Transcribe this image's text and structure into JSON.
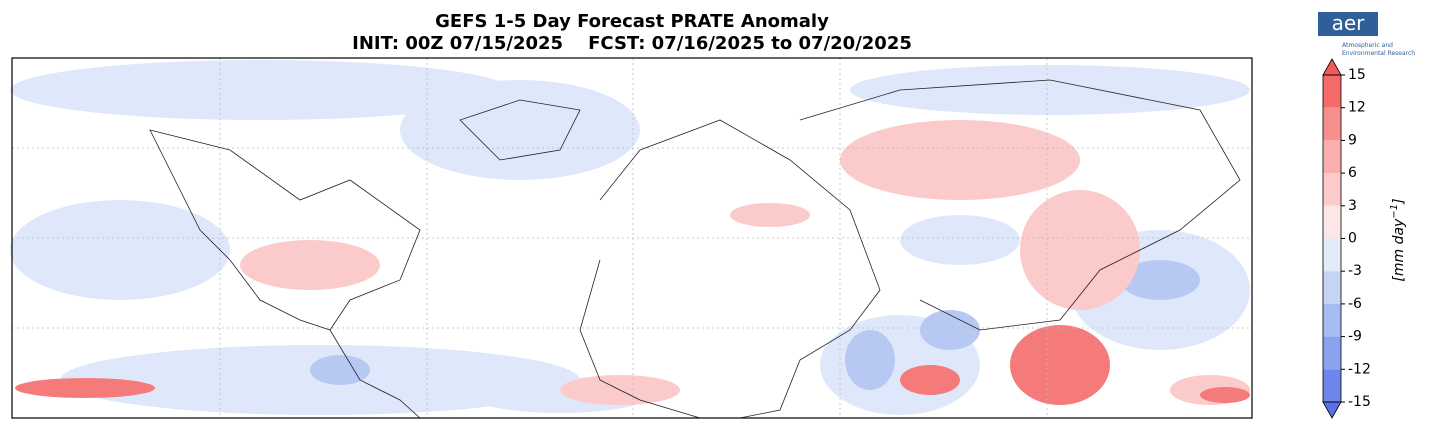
{
  "header": {
    "title": "GEFS 1-5 Day Forecast PRATE Anomaly",
    "subtitle": "INIT: 00Z 07/15/2025    FCST: 07/16/2025 to 07/20/2025"
  },
  "logo": {
    "mark": "aer",
    "text_1": "Atmospheric and",
    "text_2": "Environmental Research"
  },
  "colorbar": {
    "label": "[mm day",
    "label_exponent": "−1",
    "label_end": "]",
    "ticks": [
      15,
      12,
      9,
      6,
      3,
      0,
      -3,
      -6,
      -9,
      -12,
      -15
    ],
    "colors": [
      "#f66a6a",
      "#f88f8f",
      "#faaeae",
      "#fccaca",
      "#fde6e6",
      "#e3ebfb",
      "#c6d4f6",
      "#a7bcf2",
      "#8aa3ee",
      "#6c86eb"
    ],
    "over_color": "#f55a5a",
    "under_color": "#5b6fe8"
  }
}
